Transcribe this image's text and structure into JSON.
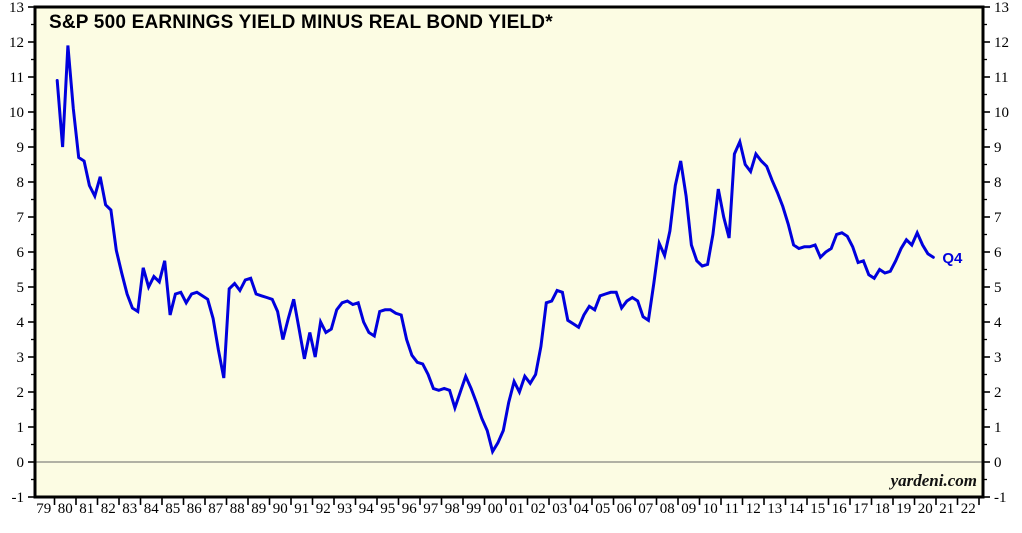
{
  "title": "S&P 500 EARNINGS YIELD MINUS REAL BOND YIELD*",
  "watermark": "yardeni.com",
  "end_label": "Q4",
  "colors": {
    "line": "#0000dd",
    "plot_background": "#fcfce3",
    "frame": "#000000",
    "zero_line": "#666666",
    "label_text": "#000000",
    "end_label_text": "#0000dd"
  },
  "chart_data": {
    "type": "line",
    "title": "S&P 500 EARNINGS YIELD MINUS REAL BOND YIELD*",
    "series_name": "S&P 500 earnings yield minus real bond yield (percentage points)",
    "frequency": "quarterly",
    "start_year": 1980,
    "start_quarter": 1,
    "last_point_label": "Q4",
    "values": [
      10.9,
      9.0,
      11.9,
      10.1,
      8.7,
      8.6,
      7.9,
      7.6,
      8.15,
      7.35,
      7.2,
      6.05,
      5.4,
      4.8,
      4.4,
      4.3,
      5.55,
      5.0,
      5.3,
      5.15,
      5.75,
      4.2,
      4.8,
      4.85,
      4.55,
      4.8,
      4.85,
      4.75,
      4.65,
      4.1,
      3.2,
      2.4,
      4.95,
      5.1,
      4.9,
      5.2,
      5.25,
      4.8,
      4.75,
      4.7,
      4.65,
      4.3,
      3.5,
      4.1,
      4.65,
      3.8,
      2.95,
      3.7,
      3.0,
      4.0,
      3.7,
      3.8,
      4.35,
      4.55,
      4.6,
      4.5,
      4.55,
      4.0,
      3.7,
      3.6,
      4.3,
      4.35,
      4.35,
      4.25,
      4.2,
      3.5,
      3.05,
      2.85,
      2.8,
      2.5,
      2.1,
      2.05,
      2.1,
      2.05,
      1.55,
      2.0,
      2.45,
      2.1,
      1.7,
      1.25,
      0.9,
      0.3,
      0.55,
      0.9,
      1.7,
      2.3,
      2.0,
      2.45,
      2.25,
      2.5,
      3.3,
      4.55,
      4.6,
      4.9,
      4.85,
      4.05,
      3.95,
      3.85,
      4.2,
      4.45,
      4.35,
      4.75,
      4.8,
      4.85,
      4.85,
      4.4,
      4.6,
      4.7,
      4.6,
      4.15,
      4.05,
      5.1,
      6.25,
      5.9,
      6.6,
      7.9,
      8.6,
      7.6,
      6.2,
      5.75,
      5.6,
      5.65,
      6.5,
      7.8,
      7.0,
      6.4,
      8.8,
      9.15,
      8.5,
      8.3,
      8.8,
      8.6,
      8.45,
      8.05,
      7.7,
      7.3,
      6.8,
      6.2,
      6.1,
      6.15,
      6.15,
      6.2,
      5.85,
      6.0,
      6.1,
      6.5,
      6.55,
      6.45,
      6.15,
      5.7,
      5.75,
      5.35,
      5.25,
      5.5,
      5.4,
      5.45,
      5.75,
      6.1,
      6.35,
      6.2,
      6.55,
      6.2,
      5.95,
      5.85
    ],
    "x_axis": {
      "start_year": 1979,
      "end_year": 2023,
      "tick_labels": [
        "79",
        "80",
        "81",
        "82",
        "83",
        "84",
        "85",
        "86",
        "87",
        "88",
        "89",
        "90",
        "91",
        "92",
        "93",
        "94",
        "95",
        "96",
        "97",
        "98",
        "99",
        "00",
        "01",
        "02",
        "03",
        "04",
        "05",
        "06",
        "07",
        "08",
        "09",
        "10",
        "11",
        "12",
        "13",
        "14",
        "15",
        "16",
        "17",
        "18",
        "19",
        "20",
        "21",
        "22"
      ]
    },
    "y_axis": {
      "min": -1,
      "max": 13,
      "major_step": 1,
      "minor_step": 0.5,
      "tick_labels": [
        "-1",
        "0",
        "1",
        "2",
        "3",
        "4",
        "5",
        "6",
        "7",
        "8",
        "9",
        "10",
        "11",
        "12",
        "13"
      ],
      "zero_line": true,
      "labels_both_sides": true
    },
    "grid": false,
    "legend": false
  }
}
